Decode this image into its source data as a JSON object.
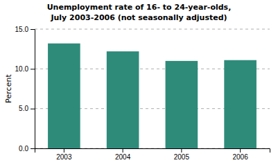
{
  "chart_data": {
    "type": "bar",
    "title": "Unemployment rate of 16- to 24-year-olds,\nJuly 2003-2006 (not seasonally adjusted)",
    "ylabel": "Percent",
    "categories": [
      "2003",
      "2004",
      "2005",
      "2006"
    ],
    "values": [
      13.2,
      12.2,
      11.0,
      11.1
    ],
    "color": "#2e8b7a",
    "ylim": [
      0.0,
      15.0
    ],
    "yticks": [
      {
        "value": 0.0,
        "label": "0.0"
      },
      {
        "value": 5.0,
        "label": "5.0"
      },
      {
        "value": 10.0,
        "label": "10.0"
      },
      {
        "value": 15.0,
        "label": "15.0"
      }
    ],
    "grid": true
  }
}
